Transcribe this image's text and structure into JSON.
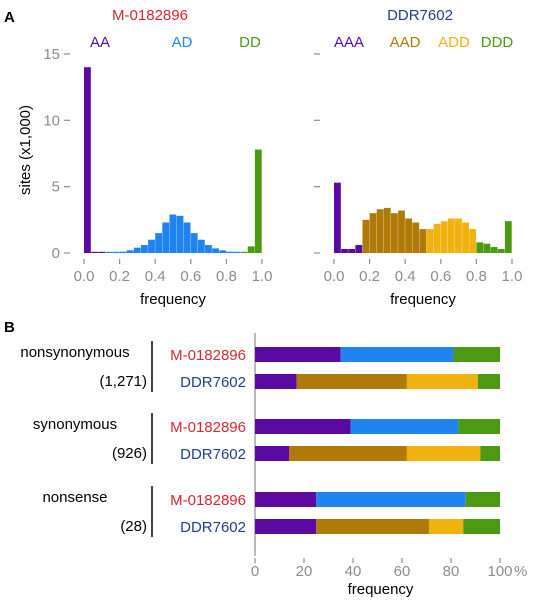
{
  "colors": {
    "red": "#d8262f",
    "blue": "#1f3e8c",
    "purple": "#5a0aa0",
    "lightblue": "#1f84f0",
    "green": "#4b9a12",
    "brown": "#b07a08",
    "gold": "#f0b20e",
    "gray": "#8c8c8c"
  },
  "panel_a": {
    "label": "A",
    "ylabel": "sites (x1,000)",
    "yticks": [
      "0",
      "5",
      "10",
      "15"
    ],
    "xticks": [
      "0.0",
      "0.2",
      "0.4",
      "0.6",
      "0.8",
      "1.0"
    ],
    "xlabel": "frequency"
  },
  "panel_b": {
    "label": "B",
    "xlabel": "frequency",
    "xticks": [
      "0",
      "20",
      "40",
      "60",
      "80",
      "100"
    ],
    "unit": "%"
  },
  "chart_data": [
    {
      "type": "bar",
      "title": "M-0182896",
      "legend": [
        "AA",
        "AD",
        "DD"
      ],
      "ylabel": "sites (x1,000)",
      "xlabel": "frequency",
      "xlim": [
        0,
        1
      ],
      "ylim": [
        0,
        15
      ],
      "bin_width": 0.04,
      "bins": [
        {
          "x": 0.0,
          "y": 14.0,
          "class": "AA"
        },
        {
          "x": 0.04,
          "y": 0.05,
          "class": "AA"
        },
        {
          "x": 0.08,
          "y": 0.05,
          "class": "AA"
        },
        {
          "x": 0.12,
          "y": 0.05,
          "class": "AD"
        },
        {
          "x": 0.16,
          "y": 0.05,
          "class": "AD"
        },
        {
          "x": 0.2,
          "y": 0.1,
          "class": "AD"
        },
        {
          "x": 0.24,
          "y": 0.2,
          "class": "AD"
        },
        {
          "x": 0.28,
          "y": 0.4,
          "class": "AD"
        },
        {
          "x": 0.32,
          "y": 0.6,
          "class": "AD"
        },
        {
          "x": 0.36,
          "y": 1.0,
          "class": "AD"
        },
        {
          "x": 0.4,
          "y": 1.5,
          "class": "AD"
        },
        {
          "x": 0.44,
          "y": 2.3,
          "class": "AD"
        },
        {
          "x": 0.48,
          "y": 2.9,
          "class": "AD"
        },
        {
          "x": 0.52,
          "y": 2.8,
          "class": "AD"
        },
        {
          "x": 0.56,
          "y": 2.3,
          "class": "AD"
        },
        {
          "x": 0.6,
          "y": 1.5,
          "class": "AD"
        },
        {
          "x": 0.64,
          "y": 1.0,
          "class": "AD"
        },
        {
          "x": 0.68,
          "y": 0.6,
          "class": "AD"
        },
        {
          "x": 0.72,
          "y": 0.35,
          "class": "AD"
        },
        {
          "x": 0.76,
          "y": 0.2,
          "class": "AD"
        },
        {
          "x": 0.8,
          "y": 0.1,
          "class": "AD"
        },
        {
          "x": 0.84,
          "y": 0.05,
          "class": "AD"
        },
        {
          "x": 0.88,
          "y": 0.05,
          "class": "DD"
        },
        {
          "x": 0.92,
          "y": 0.5,
          "class": "DD"
        },
        {
          "x": 0.96,
          "y": 7.8,
          "class": "DD"
        }
      ]
    },
    {
      "type": "bar",
      "title": "DDR7602",
      "legend": [
        "AAA",
        "AAD",
        "ADD",
        "DDD"
      ],
      "xlabel": "frequency",
      "xlim": [
        0,
        1
      ],
      "ylim": [
        0,
        15
      ],
      "bin_width": 0.04,
      "bins": [
        {
          "x": 0.0,
          "y": 5.3,
          "class": "AAA"
        },
        {
          "x": 0.04,
          "y": 0.3,
          "class": "AAA"
        },
        {
          "x": 0.08,
          "y": 0.3,
          "class": "AAA"
        },
        {
          "x": 0.12,
          "y": 0.6,
          "class": "AAA"
        },
        {
          "x": 0.16,
          "y": 2.5,
          "class": "AAD"
        },
        {
          "x": 0.2,
          "y": 3.0,
          "class": "AAD"
        },
        {
          "x": 0.24,
          "y": 3.3,
          "class": "AAD"
        },
        {
          "x": 0.28,
          "y": 3.4,
          "class": "AAD"
        },
        {
          "x": 0.32,
          "y": 3.0,
          "class": "AAD"
        },
        {
          "x": 0.36,
          "y": 3.2,
          "class": "AAD"
        },
        {
          "x": 0.4,
          "y": 2.6,
          "class": "AAD"
        },
        {
          "x": 0.44,
          "y": 2.3,
          "class": "AAD"
        },
        {
          "x": 0.48,
          "y": 1.8,
          "class": "AAD"
        },
        {
          "x": 0.52,
          "y": 1.8,
          "class": "ADD"
        },
        {
          "x": 0.56,
          "y": 2.2,
          "class": "ADD"
        },
        {
          "x": 0.6,
          "y": 2.4,
          "class": "ADD"
        },
        {
          "x": 0.64,
          "y": 2.6,
          "class": "ADD"
        },
        {
          "x": 0.68,
          "y": 2.6,
          "class": "ADD"
        },
        {
          "x": 0.72,
          "y": 2.3,
          "class": "ADD"
        },
        {
          "x": 0.76,
          "y": 1.8,
          "class": "ADD"
        },
        {
          "x": 0.8,
          "y": 0.8,
          "class": "DDD"
        },
        {
          "x": 0.84,
          "y": 0.7,
          "class": "DDD"
        },
        {
          "x": 0.88,
          "y": 0.45,
          "class": "DDD"
        },
        {
          "x": 0.92,
          "y": 0.3,
          "class": "DDD"
        },
        {
          "x": 0.96,
          "y": 2.4,
          "class": "DDD"
        }
      ]
    },
    {
      "type": "bar",
      "orientation": "horizontal",
      "stacked": true,
      "xlabel": "frequency",
      "xlim": [
        0,
        100
      ],
      "unit": "%",
      "groups": [
        {
          "name": "nonsynonymous",
          "count": "(1,271)",
          "rows": [
            {
              "sample": "M-0182896",
              "segments": [
                {
                  "class": "AA",
                  "value": 35
                },
                {
                  "class": "AD",
                  "value": 46
                },
                {
                  "class": "DD",
                  "value": 19
                }
              ]
            },
            {
              "sample": "DDR7602",
              "segments": [
                {
                  "class": "AAA",
                  "value": 17
                },
                {
                  "class": "AAD",
                  "value": 45
                },
                {
                  "class": "ADD",
                  "value": 29
                },
                {
                  "class": "DDD",
                  "value": 9
                }
              ]
            }
          ]
        },
        {
          "name": "synonymous",
          "count": "(926)",
          "rows": [
            {
              "sample": "M-0182896",
              "segments": [
                {
                  "class": "AA",
                  "value": 39
                },
                {
                  "class": "AD",
                  "value": 44
                },
                {
                  "class": "DD",
                  "value": 17
                }
              ]
            },
            {
              "sample": "DDR7602",
              "segments": [
                {
                  "class": "AAA",
                  "value": 14
                },
                {
                  "class": "AAD",
                  "value": 48
                },
                {
                  "class": "ADD",
                  "value": 30
                },
                {
                  "class": "DDD",
                  "value": 8
                }
              ]
            }
          ]
        },
        {
          "name": "nonsense",
          "count": "(28)",
          "rows": [
            {
              "sample": "M-0182896",
              "segments": [
                {
                  "class": "AA",
                  "value": 25
                },
                {
                  "class": "AD",
                  "value": 61
                },
                {
                  "class": "DD",
                  "value": 14
                }
              ]
            },
            {
              "sample": "DDR7602",
              "segments": [
                {
                  "class": "AAA",
                  "value": 25
                },
                {
                  "class": "AAD",
                  "value": 46
                },
                {
                  "class": "ADD",
                  "value": 14
                },
                {
                  "class": "DDD",
                  "value": 15
                }
              ]
            }
          ]
        }
      ]
    }
  ]
}
